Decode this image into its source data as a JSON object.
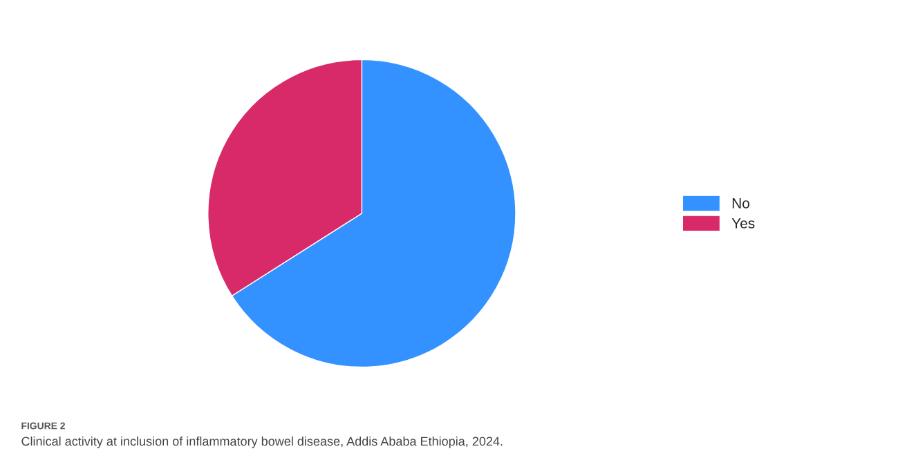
{
  "chart_data": {
    "type": "pie",
    "categories": [
      "No",
      "Yes"
    ],
    "values": [
      66,
      34
    ],
    "colors": [
      "#3392ff",
      "#d82a68"
    ],
    "legend": "right",
    "annotations": [
      "FIGURE 2",
      "Clinical activity at inclusion of inflammatory bowel disease, Addis Ababa Ethiopia, 2024."
    ]
  }
}
